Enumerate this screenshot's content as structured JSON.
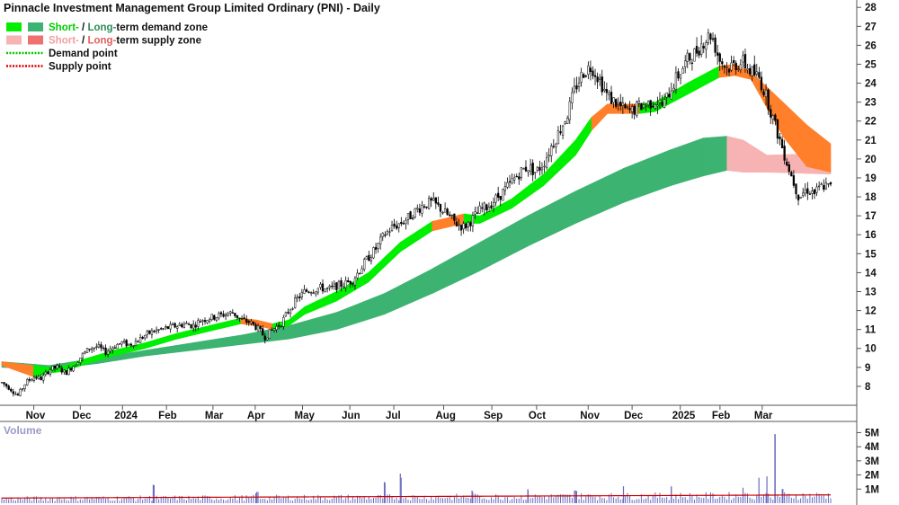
{
  "chart_data": {
    "type": "candlestick",
    "title": "Pinnacle Investment Management Group Limited Ordinary (PNI) - Daily",
    "legend": [
      {
        "swatch_colors": [
          "#00ee00",
          "#3cb371"
        ],
        "parts": [
          "Short-",
          " / ",
          "Long-",
          "term demand zone"
        ],
        "part_colors": [
          "#00cc00",
          "#111111",
          "#2e8b57",
          "#111111"
        ]
      },
      {
        "swatch_colors": [
          "#f7b3b3",
          "#ee7070"
        ],
        "parts": [
          "Short-",
          " / ",
          "Long-",
          "term supply zone"
        ],
        "part_colors": [
          "#f2a0a0",
          "#111111",
          "#e06060",
          "#111111"
        ]
      },
      {
        "line_color": "#00cc00",
        "parts": [
          "Demand point"
        ],
        "part_colors": [
          "#111111"
        ]
      },
      {
        "line_color": "#dd0000",
        "parts": [
          "Supply point"
        ],
        "part_colors": [
          "#111111"
        ]
      }
    ],
    "legend_position": "top-left",
    "y_axis": {
      "side": "right",
      "range": [
        7,
        28.2
      ],
      "ticks": [
        8,
        9,
        10,
        11,
        12,
        13,
        14,
        15,
        16,
        17,
        18,
        19,
        20,
        21,
        22,
        23,
        24,
        25,
        26,
        27,
        28
      ]
    },
    "x_axis": {
      "range": [
        0,
        100
      ],
      "labels": [
        {
          "label": "Nov",
          "pos": 4
        },
        {
          "label": "Dec",
          "pos": 9.5
        },
        {
          "label": "2024",
          "pos": 14.5
        },
        {
          "label": "Feb",
          "pos": 19.7
        },
        {
          "label": "Mar",
          "pos": 25.2
        },
        {
          "label": "Apr",
          "pos": 30.2
        },
        {
          "label": "May",
          "pos": 35.8
        },
        {
          "label": "Jun",
          "pos": 41.4
        },
        {
          "label": "Jul",
          "pos": 46.6
        },
        {
          "label": "Aug",
          "pos": 52.5
        },
        {
          "label": "Sep",
          "pos": 58.2
        },
        {
          "label": "Oct",
          "pos": 63.5
        },
        {
          "label": "Nov",
          "pos": 69.6
        },
        {
          "label": "Dec",
          "pos": 74.8
        },
        {
          "label": "2025",
          "pos": 80.5
        },
        {
          "label": "Feb",
          "pos": 85.2
        },
        {
          "label": "Mar",
          "pos": 90.2
        }
      ]
    },
    "price_path": [
      [
        0,
        8.2
      ],
      [
        1,
        7.9
      ],
      [
        2,
        7.5
      ],
      [
        3,
        8.2
      ],
      [
        4,
        8.5
      ],
      [
        5,
        8.4
      ],
      [
        6,
        8.9
      ],
      [
        7,
        9.0
      ],
      [
        8,
        8.7
      ],
      [
        9,
        9.1
      ],
      [
        10,
        9.6
      ],
      [
        11,
        10.0
      ],
      [
        12,
        10.1
      ],
      [
        13,
        9.8
      ],
      [
        14,
        10.1
      ],
      [
        15,
        10.3
      ],
      [
        16,
        10.2
      ],
      [
        17,
        10.4
      ],
      [
        18,
        10.7
      ],
      [
        19,
        10.9
      ],
      [
        20,
        11.0
      ],
      [
        21,
        11.1
      ],
      [
        22,
        11.2
      ],
      [
        23,
        11.3
      ],
      [
        24,
        11.2
      ],
      [
        25,
        11.5
      ],
      [
        26,
        11.6
      ],
      [
        27,
        11.7
      ],
      [
        28,
        11.8
      ],
      [
        29,
        11.9
      ],
      [
        30,
        11.5
      ],
      [
        31,
        11.4
      ],
      [
        32,
        11.1
      ],
      [
        33,
        10.6
      ],
      [
        34,
        11.0
      ],
      [
        35,
        11.3
      ],
      [
        36,
        12.0
      ],
      [
        37,
        12.6
      ],
      [
        38,
        13.0
      ],
      [
        39,
        13.1
      ],
      [
        40,
        13.2
      ],
      [
        41,
        13.1
      ],
      [
        42,
        13.3
      ],
      [
        43,
        13.4
      ],
      [
        44,
        13.6
      ],
      [
        45,
        14.2
      ],
      [
        46,
        14.8
      ],
      [
        47,
        15.3
      ],
      [
        48,
        16.0
      ],
      [
        49,
        16.4
      ],
      [
        50,
        16.6
      ],
      [
        51,
        16.9
      ],
      [
        52,
        17.3
      ],
      [
        53,
        17.6
      ],
      [
        54,
        17.7
      ],
      [
        55,
        17.4
      ],
      [
        56,
        17.0
      ],
      [
        57,
        16.6
      ],
      [
        58,
        16.4
      ],
      [
        59,
        16.8
      ],
      [
        60,
        17.3
      ],
      [
        61,
        17.5
      ],
      [
        62,
        17.9
      ],
      [
        63,
        18.3
      ],
      [
        64,
        18.8
      ],
      [
        65,
        19.3
      ],
      [
        66,
        19.6
      ],
      [
        67,
        19.3
      ],
      [
        68,
        19.8
      ],
      [
        69,
        20.7
      ],
      [
        70,
        21.5
      ],
      [
        71,
        22.4
      ],
      [
        72,
        23.8
      ],
      [
        73,
        24.6
      ],
      [
        74,
        24.9
      ],
      [
        75,
        24.2
      ],
      [
        76,
        23.3
      ],
      [
        77,
        23.0
      ],
      [
        78,
        22.6
      ],
      [
        79,
        22.5
      ],
      [
        80,
        22.8
      ],
      [
        81,
        22.9
      ],
      [
        82,
        23.1
      ],
      [
        83,
        22.8
      ],
      [
        84,
        23.8
      ],
      [
        85,
        24.5
      ],
      [
        86,
        25.2
      ],
      [
        87,
        25.6
      ],
      [
        88,
        26.2
      ],
      [
        89,
        26.6
      ],
      [
        90,
        25.3
      ],
      [
        91,
        24.8
      ],
      [
        92,
        25.0
      ],
      [
        93,
        25.1
      ],
      [
        94,
        24.6
      ],
      [
        95,
        24.3
      ],
      [
        96,
        23.2
      ],
      [
        97,
        21.8
      ],
      [
        98,
        20.5
      ],
      [
        99,
        19.2
      ],
      [
        100,
        18.0
      ],
      [
        101,
        18.4
      ],
      [
        102,
        18.2
      ],
      [
        103,
        18.6
      ],
      [
        104,
        18.5
      ]
    ],
    "short_term_zone": [
      [
        0,
        9.3,
        9.1,
        "s"
      ],
      [
        4,
        9.1,
        8.5,
        "s"
      ],
      [
        6,
        9.0,
        8.7,
        "d"
      ],
      [
        8,
        9.1,
        8.8,
        "d"
      ],
      [
        10,
        9.4,
        9.1,
        "d"
      ],
      [
        14,
        9.9,
        9.6,
        "d"
      ],
      [
        18,
        10.3,
        10.0,
        "d"
      ],
      [
        22,
        10.8,
        10.5,
        "d"
      ],
      [
        26,
        11.2,
        10.9,
        "d"
      ],
      [
        30,
        11.6,
        11.3,
        "d"
      ],
      [
        32,
        11.5,
        11.2,
        "s"
      ],
      [
        34,
        11.3,
        11.0,
        "s"
      ],
      [
        36,
        11.5,
        11.2,
        "d"
      ],
      [
        38,
        12.2,
        11.8,
        "d"
      ],
      [
        42,
        13.0,
        12.5,
        "d"
      ],
      [
        46,
        14.0,
        13.5,
        "d"
      ],
      [
        50,
        15.6,
        15.1,
        "d"
      ],
      [
        54,
        16.7,
        16.2,
        "d"
      ],
      [
        58,
        17.1,
        16.6,
        "s"
      ],
      [
        60,
        17.0,
        16.6,
        "d"
      ],
      [
        64,
        17.9,
        17.4,
        "d"
      ],
      [
        68,
        19.2,
        18.6,
        "d"
      ],
      [
        72,
        21.0,
        20.2,
        "d"
      ],
      [
        74,
        22.2,
        21.5,
        "d"
      ],
      [
        76,
        22.9,
        22.4,
        "s"
      ],
      [
        80,
        22.9,
        22.4,
        "s"
      ],
      [
        82,
        23.0,
        22.5,
        "d"
      ],
      [
        86,
        24.0,
        23.4,
        "d"
      ],
      [
        90,
        24.9,
        24.3,
        "d"
      ],
      [
        92,
        25.0,
        24.4,
        "s"
      ],
      [
        94,
        24.6,
        24.2,
        "s"
      ],
      [
        98,
        23.0,
        21.2,
        "s"
      ],
      [
        101,
        21.8,
        19.6,
        "s"
      ],
      [
        104,
        20.8,
        19.3,
        "s"
      ]
    ],
    "long_term_zone": [
      [
        0,
        9.3,
        9.0,
        "s"
      ],
      [
        6,
        9.1,
        8.9,
        "d"
      ],
      [
        12,
        9.5,
        9.2,
        "d"
      ],
      [
        18,
        9.9,
        9.6,
        "d"
      ],
      [
        24,
        10.3,
        9.9,
        "d"
      ],
      [
        30,
        10.7,
        10.2,
        "d"
      ],
      [
        36,
        11.2,
        10.5,
        "d"
      ],
      [
        42,
        11.9,
        11.0,
        "d"
      ],
      [
        48,
        12.9,
        11.8,
        "d"
      ],
      [
        54,
        14.2,
        12.9,
        "d"
      ],
      [
        60,
        15.6,
        14.1,
        "d"
      ],
      [
        66,
        17.0,
        15.4,
        "d"
      ],
      [
        72,
        18.3,
        16.6,
        "d"
      ],
      [
        78,
        19.5,
        17.7,
        "d"
      ],
      [
        84,
        20.5,
        18.6,
        "d"
      ],
      [
        88,
        21.1,
        19.1,
        "d"
      ],
      [
        91,
        21.2,
        19.4,
        "d"
      ],
      [
        93,
        21.0,
        19.3,
        "s"
      ],
      [
        96,
        20.2,
        19.3,
        "s"
      ],
      [
        104,
        20.3,
        19.2,
        "s"
      ]
    ],
    "volume_panel": {
      "label": "Volume",
      "ticks": [
        {
          "value": 1,
          "label": "1M"
        },
        {
          "value": 2,
          "label": "2M"
        },
        {
          "value": 3,
          "label": "3M"
        },
        {
          "value": 4,
          "label": "4M"
        },
        {
          "value": 5,
          "label": "5M"
        }
      ],
      "range": [
        0,
        5.6
      ],
      "spikes": [
        [
          19,
          1.3
        ],
        [
          32,
          0.8
        ],
        [
          48,
          1.5
        ],
        [
          50,
          2.1
        ],
        [
          59,
          0.9
        ],
        [
          66,
          1.0
        ],
        [
          72,
          0.9
        ],
        [
          78,
          1.2
        ],
        [
          84,
          1.2
        ],
        [
          93,
          1.1
        ],
        [
          95,
          1.8
        ],
        [
          96,
          1.9
        ],
        [
          97,
          4.9
        ],
        [
          98,
          1.0
        ]
      ],
      "avg_line_color": "#cc0000"
    }
  }
}
